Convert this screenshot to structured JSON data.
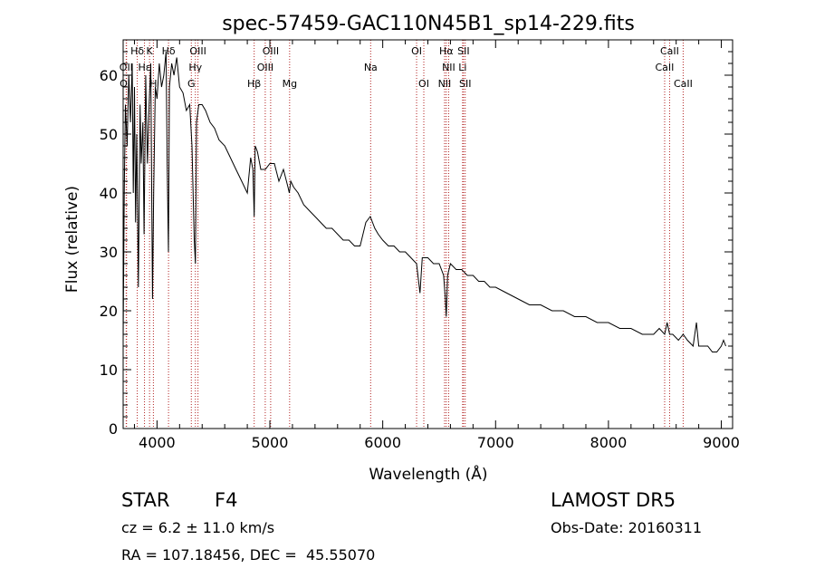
{
  "chart_data": {
    "type": "line",
    "title": "spec-57459-GAC110N45B1_sp14-229.fits",
    "xlabel": "Wavelength (Å)",
    "ylabel": "Flux (relative)",
    "xlim": [
      3700,
      9100
    ],
    "ylim": [
      0,
      66
    ],
    "xticks": [
      4000,
      5000,
      6000,
      7000,
      8000,
      9000
    ],
    "yticks": [
      0,
      10,
      20,
      30,
      40,
      50,
      60
    ],
    "grid": false,
    "line_color": "#000000",
    "marker_color": "#b22222",
    "series": [
      {
        "x": [
          3700,
          3710,
          3720,
          3735,
          3750,
          3765,
          3780,
          3790,
          3800,
          3810,
          3820,
          3835,
          3850,
          3860,
          3875,
          3885,
          3900,
          3915,
          3930,
          3945,
          3960,
          3970,
          3985,
          4000,
          4020,
          4040,
          4060,
          4080,
          4090,
          4101,
          4110,
          4130,
          4150,
          4175,
          4200,
          4230,
          4260,
          4290,
          4310,
          4330,
          4340,
          4350,
          4370,
          4400,
          4430,
          4470,
          4510,
          4550,
          4600,
          4650,
          4700,
          4750,
          4800,
          4830,
          4850,
          4861,
          4870,
          4890,
          4920,
          4960,
          5000,
          5040,
          5080,
          5120,
          5160,
          5172,
          5185,
          5210,
          5250,
          5300,
          5350,
          5400,
          5450,
          5500,
          5550,
          5600,
          5650,
          5700,
          5750,
          5800,
          5850,
          5890,
          5910,
          5930,
          5960,
          6000,
          6050,
          6100,
          6150,
          6200,
          6250,
          6300,
          6330,
          6350,
          6400,
          6450,
          6500,
          6540,
          6555,
          6563,
          6575,
          6600,
          6650,
          6700,
          6750,
          6800,
          6850,
          6900,
          6950,
          7000,
          7100,
          7200,
          7300,
          7400,
          7500,
          7600,
          7700,
          7800,
          7900,
          8000,
          8100,
          8200,
          8300,
          8400,
          8450,
          8498,
          8520,
          8542,
          8570,
          8620,
          8662,
          8700,
          8750,
          8780,
          8800,
          8840,
          8880,
          8920,
          8960,
          9000,
          9020,
          9040
        ],
        "y": [
          15,
          40,
          55,
          48,
          60,
          52,
          62,
          40,
          58,
          35,
          50,
          24,
          55,
          45,
          52,
          33,
          60,
          45,
          55,
          62,
          22,
          40,
          58,
          56,
          62,
          58,
          60,
          64,
          45,
          30,
          58,
          62,
          60,
          63,
          58,
          57,
          54,
          55,
          48,
          32,
          28,
          52,
          55,
          55,
          54,
          52,
          51,
          49,
          48,
          46,
          44,
          42,
          40,
          46,
          44,
          36,
          48,
          47,
          44,
          44,
          45,
          45,
          42,
          44,
          41,
          40,
          42,
          41,
          40,
          38,
          37,
          36,
          35,
          34,
          34,
          33,
          32,
          32,
          31,
          31,
          35,
          36,
          35,
          34,
          33,
          32,
          31,
          31,
          30,
          30,
          29,
          28,
          23,
          29,
          29,
          28,
          28,
          26,
          22,
          19,
          26,
          28,
          27,
          27,
          26,
          26,
          25,
          25,
          24,
          24,
          23,
          22,
          21,
          21,
          20,
          20,
          19,
          19,
          18,
          18,
          17,
          17,
          16,
          16,
          17,
          16,
          18,
          16,
          16,
          15,
          16,
          15,
          14,
          18,
          14,
          14,
          14,
          13,
          13,
          14,
          15,
          14
        ]
      }
    ],
    "annotations": [
      {
        "label": "Hδ",
        "x": 3825,
        "row": 0
      },
      {
        "label": "K",
        "x": 3934,
        "row": 0
      },
      {
        "label": "Hδ",
        "x": 4102,
        "row": 0
      },
      {
        "label": "OIII",
        "x": 4363,
        "row": 0
      },
      {
        "label": "OIII",
        "x": 5007,
        "row": 0
      },
      {
        "label": "OI",
        "x": 6300,
        "row": 0
      },
      {
        "label": "Hα",
        "x": 6563,
        "row": 0
      },
      {
        "label": "SII",
        "x": 6716,
        "row": 0
      },
      {
        "label": "CaII",
        "x": 8542,
        "row": 0
      },
      {
        "label": "OII",
        "x": 3727,
        "row": 1
      },
      {
        "label": "Hε",
        "x": 3889,
        "row": 1
      },
      {
        "label": "Hγ",
        "x": 4340,
        "row": 1
      },
      {
        "label": "OIII",
        "x": 4959,
        "row": 1
      },
      {
        "label": "Na",
        "x": 5893,
        "row": 1
      },
      {
        "label": "NII",
        "x": 6584,
        "row": 1
      },
      {
        "label": "Li",
        "x": 6708,
        "row": 1
      },
      {
        "label": "CaII",
        "x": 8498,
        "row": 1
      },
      {
        "label": "OII",
        "x": 3730,
        "row": 2
      },
      {
        "label": "H",
        "x": 3968,
        "row": 2
      },
      {
        "label": "G",
        "x": 4304,
        "row": 2
      },
      {
        "label": "Hβ",
        "x": 4861,
        "row": 2
      },
      {
        "label": "Mg",
        "x": 5175,
        "row": 2
      },
      {
        "label": "OI",
        "x": 6364,
        "row": 2
      },
      {
        "label": "NII",
        "x": 6548,
        "row": 2
      },
      {
        "label": "SII",
        "x": 6731,
        "row": 2
      },
      {
        "label": "CaII",
        "x": 8662,
        "row": 2
      }
    ]
  },
  "info": {
    "object_class": "STAR",
    "subclass": "F4",
    "redshift": "cz = 6.2 ± 11.0 km/s",
    "coords": "RA = 107.18456, DEC =  45.55070",
    "survey": "LAMOST DR5",
    "obs_date": "Obs-Date: 20160311"
  }
}
